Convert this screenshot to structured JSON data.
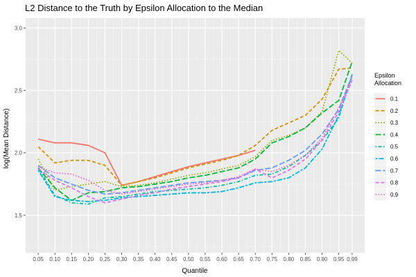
{
  "chart_data": {
    "type": "line",
    "title": "L2 Distance to the Truth by Epsilon Allocation to the Median",
    "xlabel": "Quantile",
    "ylabel": "log(Mean Distance)",
    "ylim": [
      1.2,
      3.08
    ],
    "yticks": [
      1.5,
      2.0,
      2.5,
      3.0
    ],
    "ytick_labels": [
      "1.5",
      "2.0",
      "2.5",
      "3.0"
    ],
    "x": [
      0.05,
      0.1,
      0.15,
      0.2,
      0.25,
      0.3,
      0.35,
      0.4,
      0.45,
      0.5,
      0.55,
      0.6,
      0.65,
      0.7,
      0.75,
      0.8,
      0.85,
      0.9,
      0.95,
      0.99
    ],
    "xtick_labels": [
      "0.05",
      "0.10",
      "0.15",
      "0.20",
      "0.25",
      "0.30",
      "0.35",
      "0.40",
      "0.45",
      "0.50",
      "0.55",
      "0.60",
      "0.65",
      "0.70",
      "0.75",
      "0.80",
      "0.85",
      "0.90",
      "0.95",
      "0.99"
    ],
    "grid": true,
    "legend": {
      "title_lines": [
        "Epsilon",
        "Allocation"
      ],
      "placement": "right"
    },
    "series": [
      {
        "name": "0.1",
        "color": "#F8766D",
        "dash": "solid",
        "values": [
          2.11,
          2.08,
          2.08,
          2.06,
          2.0,
          1.74,
          1.77,
          1.81,
          1.85,
          1.89,
          1.92,
          1.95,
          1.98,
          2.02,
          null,
          null,
          null,
          null,
          null,
          null
        ]
      },
      {
        "name": "0.2",
        "color": "#D39200",
        "dash": "dashed",
        "values": [
          2.05,
          1.92,
          1.94,
          1.94,
          1.9,
          1.74,
          1.77,
          1.8,
          1.84,
          1.88,
          1.91,
          1.94,
          1.98,
          2.06,
          2.18,
          2.24,
          2.3,
          2.43,
          2.67,
          2.68
        ]
      },
      {
        "name": "0.3",
        "color": "#93AA00",
        "dash": "dotted",
        "values": [
          1.95,
          1.7,
          1.73,
          1.75,
          1.77,
          1.73,
          1.74,
          1.76,
          1.79,
          1.82,
          1.84,
          1.87,
          1.9,
          1.97,
          2.1,
          2.14,
          2.2,
          2.33,
          2.82,
          2.72
        ]
      },
      {
        "name": "0.4",
        "color": "#00BA38",
        "dash": "longdash",
        "values": [
          1.88,
          1.72,
          1.62,
          1.68,
          1.69,
          1.72,
          1.73,
          1.75,
          1.77,
          1.8,
          1.82,
          1.85,
          1.88,
          1.95,
          2.08,
          2.13,
          2.2,
          2.32,
          2.42,
          2.73
        ]
      },
      {
        "name": "0.5",
        "color": "#00C19F",
        "dash": "dotdash",
        "values": [
          1.88,
          1.66,
          1.6,
          1.59,
          1.64,
          1.65,
          1.67,
          1.69,
          1.7,
          1.71,
          1.72,
          1.74,
          1.77,
          1.82,
          1.83,
          1.89,
          1.98,
          2.1,
          2.28,
          2.63
        ]
      },
      {
        "name": "0.6",
        "color": "#00B9E3",
        "dash": "twodash",
        "values": [
          1.86,
          1.65,
          1.62,
          1.61,
          1.62,
          1.64,
          1.65,
          1.66,
          1.67,
          1.68,
          1.68,
          1.69,
          1.72,
          1.76,
          1.77,
          1.8,
          1.88,
          2.03,
          2.3,
          2.62
        ]
      },
      {
        "name": "0.7",
        "color": "#619CFF",
        "dash": "longdash",
        "values": [
          1.9,
          1.8,
          1.75,
          1.7,
          1.67,
          1.68,
          1.7,
          1.72,
          1.74,
          1.76,
          1.77,
          1.78,
          1.8,
          1.86,
          1.88,
          1.94,
          2.02,
          2.15,
          2.35,
          2.62
        ]
      },
      {
        "name": "0.8",
        "color": "#DB72FB",
        "dash": "dashed",
        "values": [
          1.87,
          1.78,
          1.72,
          1.65,
          1.6,
          1.63,
          1.66,
          1.68,
          1.71,
          1.73,
          1.75,
          1.77,
          1.8,
          1.87,
          1.8,
          1.86,
          1.95,
          2.1,
          2.33,
          2.58
        ]
      },
      {
        "name": "0.9",
        "color": "#FF61C3",
        "dash": "dotted",
        "values": [
          1.89,
          1.84,
          1.83,
          1.78,
          1.7,
          1.67,
          1.69,
          1.71,
          1.73,
          1.75,
          1.76,
          1.78,
          1.81,
          1.87,
          1.85,
          1.9,
          1.98,
          2.12,
          2.36,
          2.6
        ]
      }
    ]
  }
}
